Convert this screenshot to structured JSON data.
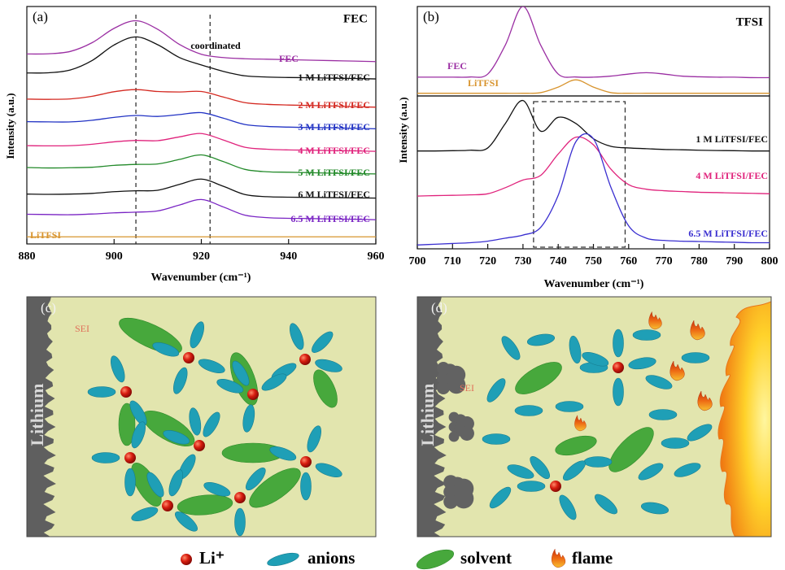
{
  "chart_data": [
    {
      "type": "line",
      "panel_label": "(a)",
      "annotations": [
        "FEC",
        "coordinated"
      ],
      "x_label": "Wavenumber (cm⁻¹)",
      "y_label": "Intensity (a.u.)",
      "xlim": [
        880,
        960
      ],
      "xticks": [
        880,
        900,
        920,
        940,
        960
      ],
      "ylim": [
        0,
        100
      ],
      "reference_lines": [
        905,
        922
      ],
      "x": [
        880,
        885,
        890,
        895,
        900,
        905,
        910,
        915,
        920,
        925,
        930,
        935,
        940,
        945,
        950,
        955,
        960
      ],
      "series": [
        {
          "name": "FEC",
          "color": "#9b2fa3",
          "values": [
            80.0,
            80.1,
            81.1,
            84.8,
            90.8,
            94.0,
            90.4,
            84.0,
            79.9,
            78.5,
            78.0,
            77.8,
            77.6,
            77.4,
            77.2,
            77.0,
            76.8
          ]
        },
        {
          "name": "1 M LiTFSI/FEC",
          "color": "#111111",
          "values": [
            72.0,
            72.1,
            73.3,
            77.3,
            83.8,
            87.2,
            83.9,
            78.5,
            75.4,
            72.7,
            70.8,
            70.3,
            70.1,
            70.0,
            69.8,
            69.7,
            69.5
          ]
        },
        {
          "name": "2 M LiTFSI/FEC",
          "color": "#d42a22",
          "values": [
            61.0,
            60.9,
            61.1,
            62.2,
            64.1,
            65.0,
            64.2,
            64.0,
            64.2,
            61.9,
            59.5,
            58.8,
            58.5,
            58.3,
            58.1,
            57.8,
            57.6
          ]
        },
        {
          "name": "3 M LiTFSI/FEC",
          "color": "#2233c4",
          "values": [
            51.5,
            51.4,
            51.4,
            52.1,
            53.3,
            54.1,
            53.7,
            54.5,
            55.3,
            53.0,
            50.3,
            49.5,
            49.2,
            49.0,
            48.9,
            48.7,
            48.5
          ]
        },
        {
          "name": "4 M LiTFSI/FEC",
          "color": "#e0237c",
          "values": [
            41.4,
            41.3,
            41.4,
            42.0,
            43.0,
            43.6,
            43.5,
            45.1,
            46.5,
            43.8,
            40.7,
            39.9,
            39.6,
            39.5,
            39.3,
            39.2,
            39.0
          ]
        },
        {
          "name": "5 M LiTFSI/FEC",
          "color": "#238a2a",
          "values": [
            32.2,
            32.0,
            32.1,
            32.3,
            33.1,
            33.5,
            33.7,
            35.6,
            37.5,
            34.7,
            31.4,
            30.4,
            30.2,
            30.0,
            29.8,
            29.6,
            29.5
          ]
        },
        {
          "name": "6 M LiTFSI/FEC",
          "color": "#111111",
          "values": [
            21.0,
            20.9,
            21.0,
            21.3,
            22.0,
            22.4,
            22.6,
            25.1,
            27.3,
            24.3,
            20.8,
            19.9,
            19.7,
            19.6,
            19.5,
            19.4,
            19.3
          ]
        },
        {
          "name": "6.5 M LiTFSI/FEC",
          "color": "#7a25c4",
          "values": [
            12.5,
            12.4,
            12.3,
            12.6,
            13.1,
            13.4,
            13.9,
            16.4,
            18.7,
            15.6,
            12.1,
            11.1,
            10.8,
            10.7,
            10.5,
            10.4,
            10.2
          ]
        },
        {
          "name": "LiTFSI",
          "color": "#d8942e",
          "values": [
            3,
            3,
            3,
            3,
            3,
            3,
            3,
            3,
            3,
            3,
            3,
            3,
            3,
            3,
            3,
            3,
            3
          ]
        }
      ]
    },
    {
      "type": "line",
      "panel_label": "(b)",
      "annotations": [
        "TFSI"
      ],
      "xlim": [
        700,
        800
      ],
      "ylim": [
        0,
        100
      ],
      "x": [
        700,
        705,
        710,
        715,
        720,
        725,
        730,
        735,
        740,
        745,
        750,
        755,
        760,
        765,
        770,
        775,
        780,
        785,
        790,
        795,
        800
      ],
      "series": [
        {
          "name": "FEC",
          "color": "#9b2fa3",
          "values": [
            21,
            21,
            21,
            21.2,
            24.5,
            57,
            100,
            57,
            24.5,
            21.2,
            21,
            22.2,
            24.5,
            26,
            24.5,
            22.2,
            21.4,
            21,
            21,
            20.5,
            20.5
          ]
        },
        {
          "name": "LiTFSI",
          "color": "#d8942e",
          "values": [
            3,
            3,
            3,
            3,
            3,
            3,
            3,
            3.7,
            9.9,
            18,
            9.9,
            3.7,
            3,
            3,
            3,
            3,
            3,
            3,
            3,
            3,
            3
          ]
        }
      ]
    },
    {
      "type": "line",
      "x_label": "Wavenumber (cm⁻¹)",
      "y_label": "Intensity (a.u.)",
      "xlim": [
        700,
        800
      ],
      "xticks": [
        700,
        710,
        720,
        730,
        740,
        750,
        760,
        770,
        780,
        790,
        800
      ],
      "ylim": [
        0,
        100
      ],
      "highlight": [
        733,
        759
      ],
      "x": [
        700,
        705,
        710,
        715,
        720,
        725,
        730,
        735,
        740,
        745,
        750,
        755,
        760,
        765,
        770,
        775,
        780,
        785,
        790,
        795,
        800
      ],
      "series": [
        {
          "name": "1 M LiTFSI/FEC",
          "color": "#111111",
          "values": [
            64.0,
            64.0,
            64.2,
            64.5,
            66,
            82,
            97,
            77,
            86,
            82,
            72,
            67,
            66,
            65.5,
            65,
            64.8,
            64.5,
            64.3,
            64.2,
            64,
            64
          ]
        },
        {
          "name": "4 M LiTFSI/FEC",
          "color": "#e0237c",
          "values": [
            34.5,
            34.8,
            35,
            35.3,
            36,
            40,
            45,
            48,
            62,
            73,
            68,
            52,
            42,
            39,
            38,
            37.5,
            37,
            36.8,
            36.5,
            36.3,
            36
          ]
        },
        {
          "name": "6.5 M LiTFSI/FEC",
          "color": "#3a2fd0",
          "values": [
            2.5,
            3,
            3.5,
            4,
            5,
            7,
            9,
            14,
            35,
            70,
            72,
            40,
            15,
            7,
            5.5,
            5,
            4.8,
            4.5,
            4.3,
            4,
            4
          ]
        }
      ]
    }
  ],
  "diagrams": [
    {
      "panel_label": "(c)",
      "sei_label": "SEI",
      "electrode_label": "Lithium"
    },
    {
      "panel_label": "(d)",
      "sei_label": "SEI",
      "electrode_label": "Lithium"
    }
  ],
  "legend": {
    "items": [
      "Li⁺",
      "anions",
      "solvent",
      "flame"
    ]
  }
}
